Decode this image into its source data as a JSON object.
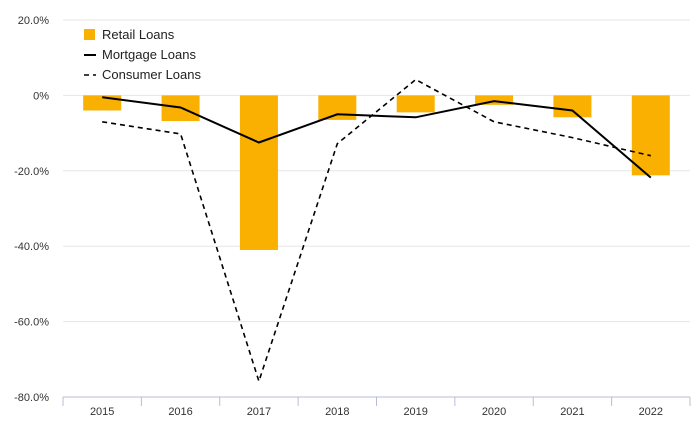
{
  "chart_data": {
    "type": "bar",
    "title": "",
    "xlabel": "",
    "ylabel": "",
    "categories": [
      "2015",
      "2016",
      "2017",
      "2018",
      "2019",
      "2020",
      "2021",
      "2022"
    ],
    "ylim": [
      -80,
      20
    ],
    "yticks": [
      20,
      0,
      -20,
      -40,
      -60,
      -80
    ],
    "ytick_labels": [
      "20.0%",
      "0%",
      "-20.0%",
      "-40.0%",
      "-60.0%",
      "-80.0%"
    ],
    "grid": true,
    "legend_position": "top-left",
    "series": [
      {
        "name": "Retail Loans",
        "kind": "bar",
        "style": "solid",
        "color": "#f9b000",
        "values": [
          -4.0,
          -6.8,
          -41.0,
          -6.5,
          -4.5,
          -2.5,
          -5.8,
          -21.2
        ]
      },
      {
        "name": "Mortgage Loans",
        "kind": "line",
        "style": "solid",
        "color": "#000000",
        "values": [
          -0.5,
          -3.2,
          -12.5,
          -5.0,
          -5.8,
          -1.5,
          -4.0,
          -21.8
        ]
      },
      {
        "name": "Consumer Loans",
        "kind": "line",
        "style": "dashed",
        "color": "#000000",
        "values": [
          -7.0,
          -10.2,
          -75.8,
          -12.8,
          4.2,
          -7.0,
          -11.2,
          -16.0
        ]
      }
    ]
  }
}
